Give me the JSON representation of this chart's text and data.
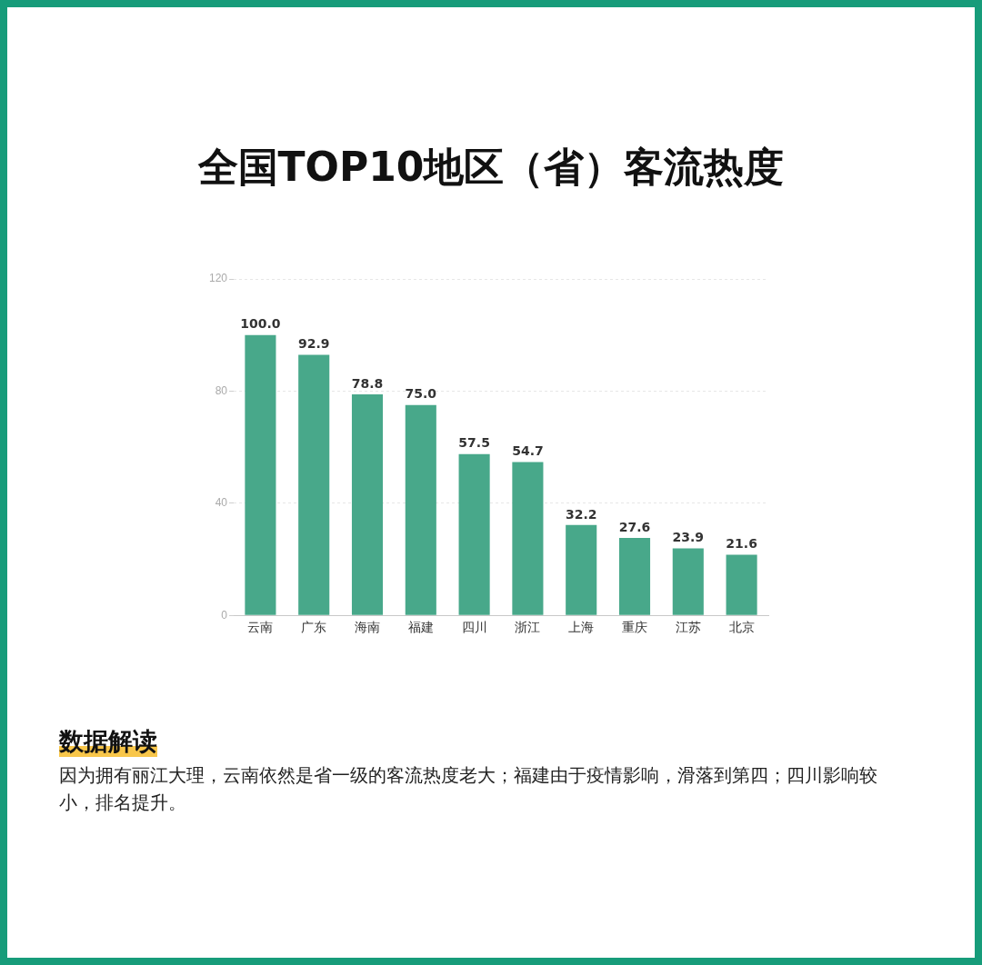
{
  "chart_data": {
    "type": "bar",
    "title": "全国TOP10地区（省）客流热度",
    "categories": [
      "云南",
      "广东",
      "海南",
      "福建",
      "四川",
      "浙江",
      "上海",
      "重庆",
      "江苏",
      "北京"
    ],
    "values": [
      100.0,
      92.9,
      78.8,
      75.0,
      57.5,
      54.7,
      32.2,
      27.6,
      23.9,
      21.6
    ],
    "value_labels": [
      "100.0",
      "92.9",
      "78.8",
      "75.0",
      "57.5",
      "54.7",
      "32.2",
      "27.6",
      "23.9",
      "21.6"
    ],
    "color": "#48a88a",
    "ylim": [
      0,
      120
    ],
    "yticks": [
      0,
      40,
      80,
      120
    ],
    "grid": "y",
    "annotations": [
      "数据解读",
      "因为拥有丽江大理，云南依然是省一级的客流热度老大；福建由于疫情影响，滑落到第四；四川影响较小，排名提升。"
    ]
  }
}
